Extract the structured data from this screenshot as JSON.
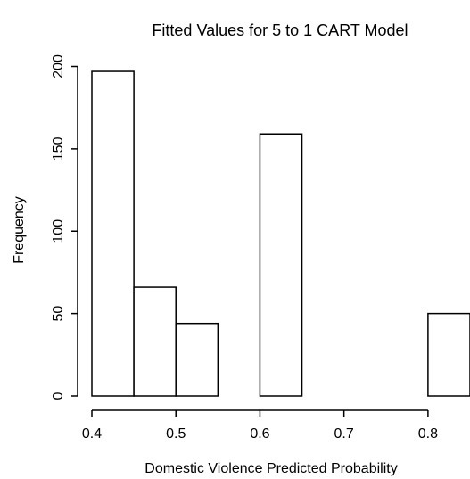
{
  "chart_data": {
    "type": "bar",
    "title": "Fitted Values for 5 to 1 CART Model",
    "xlabel": "Domestic Violence Predicted Probability",
    "ylabel": "Frequency",
    "bins": [
      {
        "start": 0.4,
        "end": 0.45,
        "count": 197
      },
      {
        "start": 0.45,
        "end": 0.5,
        "count": 66
      },
      {
        "start": 0.5,
        "end": 0.55,
        "count": 44
      },
      {
        "start": 0.55,
        "end": 0.6,
        "count": 0
      },
      {
        "start": 0.6,
        "end": 0.65,
        "count": 159
      },
      {
        "start": 0.65,
        "end": 0.7,
        "count": 0
      },
      {
        "start": 0.7,
        "end": 0.75,
        "count": 0
      },
      {
        "start": 0.75,
        "end": 0.8,
        "count": 0
      },
      {
        "start": 0.8,
        "end": 0.85,
        "count": 50
      }
    ],
    "xlim": [
      0.4,
      0.85
    ],
    "ylim": [
      0,
      200
    ],
    "x_ticks": [
      0.4,
      0.5,
      0.6,
      0.7,
      0.8
    ],
    "x_tick_labels": [
      "0.4",
      "0.5",
      "0.6",
      "0.7",
      "0.8"
    ],
    "y_ticks": [
      0,
      50,
      100,
      150,
      200
    ],
    "y_tick_labels": [
      "0",
      "50",
      "100",
      "150",
      "200"
    ],
    "grid": false,
    "legend": "none",
    "colors": {
      "bar_fill": "#ffffff",
      "bar_stroke": "#000000",
      "background": "#ffffff"
    }
  }
}
